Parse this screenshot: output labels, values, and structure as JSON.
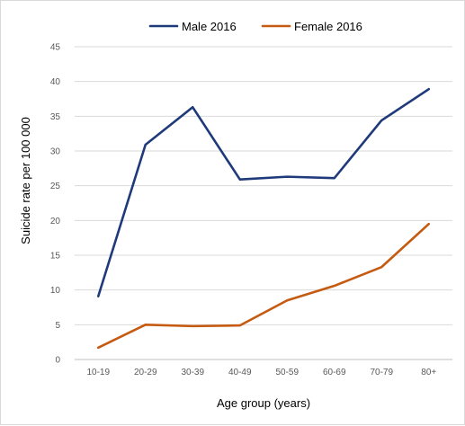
{
  "chart_data": {
    "type": "line",
    "categories": [
      "10-19",
      "20-29",
      "30-39",
      "40-49",
      "50-59",
      "60-69",
      "70-79",
      "80+"
    ],
    "series": [
      {
        "name": "Male 2016",
        "color": "#1f3a7a",
        "values": [
          9.1,
          30.9,
          36.3,
          25.9,
          26.3,
          26.1,
          34.4,
          38.9
        ]
      },
      {
        "name": "Female 2016",
        "color": "#c55a11",
        "values": [
          1.7,
          5.0,
          4.8,
          4.9,
          8.5,
          10.6,
          13.3,
          19.5
        ]
      }
    ],
    "xlabel": "Age group (years)",
    "ylabel": "Suicide rate per 100 000",
    "ylim": [
      0,
      45
    ],
    "yticks": [
      0,
      5,
      10,
      15,
      20,
      25,
      30,
      35,
      40,
      45
    ],
    "grid": "horizontal",
    "legend": "top"
  }
}
